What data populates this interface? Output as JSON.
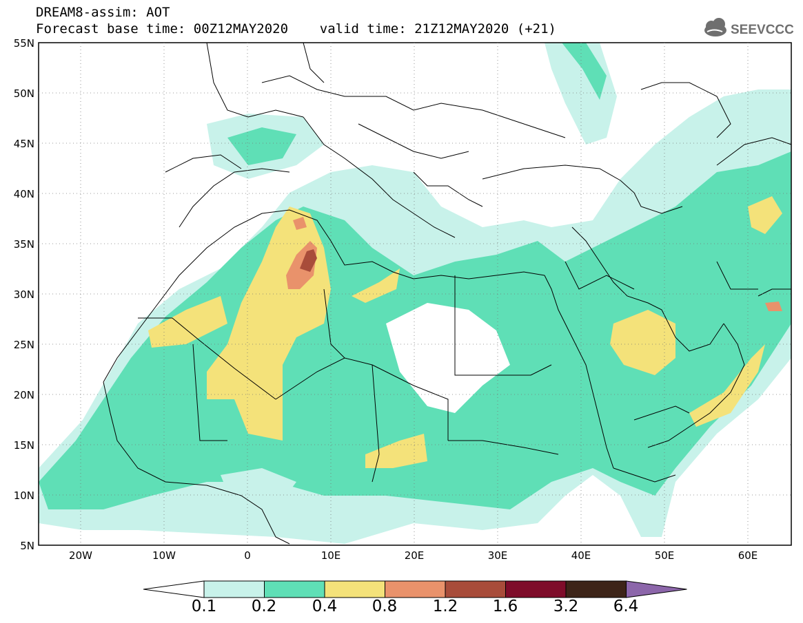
{
  "header": {
    "line1": "DREAM8-assim: AOT",
    "line2": "Forecast base time: 00Z12MAY2020    valid time: 21Z12MAY2020 (+21)"
  },
  "logo": {
    "text": "SEEVCCC",
    "icon": "cloud-logo-icon"
  },
  "map": {
    "lon_range": [
      -25,
      65
    ],
    "lat_range": [
      5,
      55
    ],
    "lat_labels": [
      "55N",
      "50N",
      "45N",
      "40N",
      "35N",
      "30N",
      "25N",
      "20N",
      "15N",
      "10N",
      "5N"
    ],
    "lon_labels": [
      "20W",
      "10W",
      "0",
      "10E",
      "20E",
      "30E",
      "40E",
      "50E",
      "60E"
    ]
  },
  "colorbar": {
    "levels": [
      "0.1",
      "0.2",
      "0.4",
      "0.8",
      "1.2",
      "1.6",
      "3.2",
      "6.4"
    ],
    "colors": [
      "#c8f2ea",
      "#5fdfb6",
      "#f4e27a",
      "#e9926b",
      "#a84c3a",
      "#7e0c2a",
      "#3d2418",
      "#8c66aa"
    ]
  }
}
